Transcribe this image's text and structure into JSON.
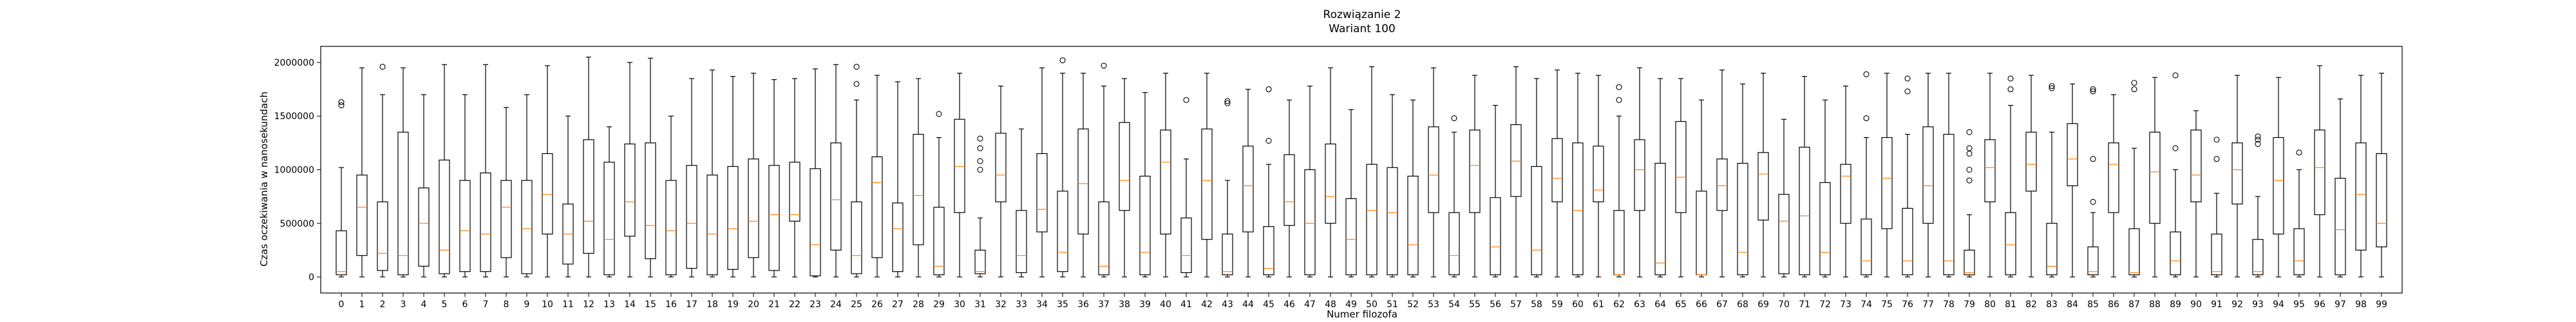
{
  "chart_data": {
    "type": "boxplot",
    "title": "Rozwiązanie 2",
    "subtitle": "Wariant 100",
    "xlabel": "Numer filozofa",
    "ylabel": "Czas oczekiwania w nanosekundach",
    "ylim": [
      -150000,
      2150000
    ],
    "yticks": [
      0,
      500000,
      1000000,
      1500000,
      2000000
    ],
    "ytick_labels": [
      "0",
      "500000",
      "1000000",
      "1500000",
      "2000000"
    ],
    "colors": {
      "box": "#000000",
      "median": "#ff7f0e",
      "frame": "#000000"
    },
    "categories": [
      "0",
      "1",
      "2",
      "3",
      "4",
      "5",
      "6",
      "7",
      "8",
      "9",
      "10",
      "11",
      "12",
      "13",
      "14",
      "15",
      "16",
      "17",
      "18",
      "19",
      "20",
      "21",
      "22",
      "23",
      "24",
      "25",
      "26",
      "27",
      "28",
      "29",
      "30",
      "31",
      "32",
      "33",
      "34",
      "35",
      "36",
      "37",
      "38",
      "39",
      "40",
      "41",
      "42",
      "43",
      "44",
      "45",
      "46",
      "47",
      "48",
      "49",
      "50",
      "51",
      "52",
      "53",
      "54",
      "55",
      "56",
      "57",
      "58",
      "59",
      "60",
      "61",
      "62",
      "63",
      "64",
      "65",
      "66",
      "67",
      "68",
      "69",
      "70",
      "71",
      "72",
      "73",
      "74",
      "75",
      "76",
      "77",
      "78",
      "79",
      "80",
      "81",
      "82",
      "83",
      "84",
      "85",
      "86",
      "87",
      "88",
      "89",
      "90",
      "91",
      "92",
      "93",
      "94",
      "95",
      "96",
      "97",
      "98",
      "99"
    ],
    "boxes": [
      {
        "whislo": 0,
        "q1": 20000,
        "med": 50000,
        "q3": 430000,
        "whishi": 1020000,
        "fliers": [
          1600000,
          1630000
        ]
      },
      {
        "whislo": 0,
        "q1": 200000,
        "med": 650000,
        "q3": 950000,
        "whishi": 1950000,
        "fliers": []
      },
      {
        "whislo": 0,
        "q1": 60000,
        "med": 220000,
        "q3": 700000,
        "whishi": 1700000,
        "fliers": [
          1960000
        ]
      },
      {
        "whislo": 0,
        "q1": 20000,
        "med": 200000,
        "q3": 1350000,
        "whishi": 1950000,
        "fliers": []
      },
      {
        "whislo": 0,
        "q1": 100000,
        "med": 500000,
        "q3": 830000,
        "whishi": 1700000,
        "fliers": []
      },
      {
        "whislo": 0,
        "q1": 30000,
        "med": 250000,
        "q3": 1090000,
        "whishi": 1980000,
        "fliers": []
      },
      {
        "whislo": 0,
        "q1": 50000,
        "med": 430000,
        "q3": 900000,
        "whishi": 1700000,
        "fliers": []
      },
      {
        "whislo": 0,
        "q1": 50000,
        "med": 400000,
        "q3": 970000,
        "whishi": 1980000,
        "fliers": []
      },
      {
        "whislo": 0,
        "q1": 180000,
        "med": 650000,
        "q3": 900000,
        "whishi": 1580000,
        "fliers": []
      },
      {
        "whislo": 0,
        "q1": 30000,
        "med": 450000,
        "q3": 900000,
        "whishi": 1700000,
        "fliers": []
      },
      {
        "whislo": 0,
        "q1": 400000,
        "med": 770000,
        "q3": 1150000,
        "whishi": 1970000,
        "fliers": []
      },
      {
        "whislo": 0,
        "q1": 120000,
        "med": 400000,
        "q3": 680000,
        "whishi": 1500000,
        "fliers": []
      },
      {
        "whislo": 0,
        "q1": 220000,
        "med": 520000,
        "q3": 1280000,
        "whishi": 2050000,
        "fliers": []
      },
      {
        "whislo": 0,
        "q1": 20000,
        "med": 350000,
        "q3": 1070000,
        "whishi": 1400000,
        "fliers": []
      },
      {
        "whislo": 0,
        "q1": 380000,
        "med": 700000,
        "q3": 1240000,
        "whishi": 2000000,
        "fliers": []
      },
      {
        "whislo": 0,
        "q1": 170000,
        "med": 480000,
        "q3": 1250000,
        "whishi": 2040000,
        "fliers": []
      },
      {
        "whislo": 0,
        "q1": 20000,
        "med": 430000,
        "q3": 900000,
        "whishi": 1500000,
        "fliers": []
      },
      {
        "whislo": 0,
        "q1": 80000,
        "med": 500000,
        "q3": 1040000,
        "whishi": 1850000,
        "fliers": []
      },
      {
        "whislo": 0,
        "q1": 20000,
        "med": 400000,
        "q3": 950000,
        "whishi": 1930000,
        "fliers": []
      },
      {
        "whislo": 0,
        "q1": 70000,
        "med": 450000,
        "q3": 1030000,
        "whishi": 1870000,
        "fliers": []
      },
      {
        "whislo": 0,
        "q1": 180000,
        "med": 520000,
        "q3": 1100000,
        "whishi": 1900000,
        "fliers": []
      },
      {
        "whislo": 0,
        "q1": 60000,
        "med": 580000,
        "q3": 1040000,
        "whishi": 1840000,
        "fliers": []
      },
      {
        "whislo": 0,
        "q1": 520000,
        "med": 580000,
        "q3": 1070000,
        "whishi": 1850000,
        "fliers": []
      },
      {
        "whislo": 0,
        "q1": 10000,
        "med": 300000,
        "q3": 1010000,
        "whishi": 1940000,
        "fliers": []
      },
      {
        "whislo": 0,
        "q1": 250000,
        "med": 720000,
        "q3": 1250000,
        "whishi": 1980000,
        "fliers": []
      },
      {
        "whislo": 0,
        "q1": 30000,
        "med": 200000,
        "q3": 700000,
        "whishi": 1650000,
        "fliers": [
          1800000,
          1960000
        ]
      },
      {
        "whislo": 0,
        "q1": 180000,
        "med": 880000,
        "q3": 1120000,
        "whishi": 1880000,
        "fliers": []
      },
      {
        "whislo": 0,
        "q1": 50000,
        "med": 450000,
        "q3": 690000,
        "whishi": 1820000,
        "fliers": []
      },
      {
        "whislo": 0,
        "q1": 300000,
        "med": 760000,
        "q3": 1330000,
        "whishi": 1850000,
        "fliers": []
      },
      {
        "whislo": 0,
        "q1": 20000,
        "med": 100000,
        "q3": 650000,
        "whishi": 1300000,
        "fliers": [
          1520000
        ]
      },
      {
        "whislo": 0,
        "q1": 600000,
        "med": 1030000,
        "q3": 1470000,
        "whishi": 1900000,
        "fliers": []
      },
      {
        "whislo": 0,
        "q1": 30000,
        "med": 50000,
        "q3": 250000,
        "whishi": 550000,
        "fliers": [
          1000000,
          1080000,
          1200000,
          1290000
        ]
      },
      {
        "whislo": 0,
        "q1": 700000,
        "med": 950000,
        "q3": 1340000,
        "whishi": 1780000,
        "fliers": []
      },
      {
        "whislo": 0,
        "q1": 40000,
        "med": 200000,
        "q3": 620000,
        "whishi": 1380000,
        "fliers": []
      },
      {
        "whislo": 0,
        "q1": 420000,
        "med": 630000,
        "q3": 1150000,
        "whishi": 1950000,
        "fliers": []
      },
      {
        "whislo": 0,
        "q1": 50000,
        "med": 230000,
        "q3": 800000,
        "whishi": 1900000,
        "fliers": [
          2020000
        ]
      },
      {
        "whislo": 0,
        "q1": 400000,
        "med": 870000,
        "q3": 1380000,
        "whishi": 1900000,
        "fliers": []
      },
      {
        "whislo": 0,
        "q1": 20000,
        "med": 100000,
        "q3": 700000,
        "whishi": 1780000,
        "fliers": [
          1970000
        ]
      },
      {
        "whislo": 0,
        "q1": 620000,
        "med": 900000,
        "q3": 1440000,
        "whishi": 1850000,
        "fliers": []
      },
      {
        "whislo": 0,
        "q1": 20000,
        "med": 230000,
        "q3": 940000,
        "whishi": 1720000,
        "fliers": []
      },
      {
        "whislo": 0,
        "q1": 400000,
        "med": 1070000,
        "q3": 1370000,
        "whishi": 1900000,
        "fliers": []
      },
      {
        "whislo": 0,
        "q1": 40000,
        "med": 200000,
        "q3": 550000,
        "whishi": 1100000,
        "fliers": [
          1650000
        ]
      },
      {
        "whislo": 0,
        "q1": 350000,
        "med": 900000,
        "q3": 1380000,
        "whishi": 1900000,
        "fliers": []
      },
      {
        "whislo": 0,
        "q1": 20000,
        "med": 50000,
        "q3": 400000,
        "whishi": 900000,
        "fliers": [
          1620000,
          1640000
        ]
      },
      {
        "whislo": 0,
        "q1": 420000,
        "med": 850000,
        "q3": 1220000,
        "whishi": 1750000,
        "fliers": []
      },
      {
        "whislo": 0,
        "q1": 20000,
        "med": 80000,
        "q3": 470000,
        "whishi": 1050000,
        "fliers": [
          1270000,
          1750000
        ]
      },
      {
        "whislo": 0,
        "q1": 480000,
        "med": 700000,
        "q3": 1140000,
        "whishi": 1650000,
        "fliers": []
      },
      {
        "whislo": 0,
        "q1": 20000,
        "med": 500000,
        "q3": 1000000,
        "whishi": 1780000,
        "fliers": []
      },
      {
        "whislo": 0,
        "q1": 500000,
        "med": 750000,
        "q3": 1240000,
        "whishi": 1950000,
        "fliers": []
      },
      {
        "whislo": 0,
        "q1": 20000,
        "med": 350000,
        "q3": 730000,
        "whishi": 1560000,
        "fliers": []
      },
      {
        "whislo": 0,
        "q1": 20000,
        "med": 620000,
        "q3": 1050000,
        "whishi": 1960000,
        "fliers": []
      },
      {
        "whislo": 0,
        "q1": 20000,
        "med": 600000,
        "q3": 1020000,
        "whishi": 1700000,
        "fliers": []
      },
      {
        "whislo": 0,
        "q1": 20000,
        "med": 300000,
        "q3": 940000,
        "whishi": 1650000,
        "fliers": []
      },
      {
        "whislo": 0,
        "q1": 600000,
        "med": 950000,
        "q3": 1400000,
        "whishi": 1950000,
        "fliers": []
      },
      {
        "whislo": 0,
        "q1": 20000,
        "med": 200000,
        "q3": 600000,
        "whishi": 1350000,
        "fliers": [
          1480000
        ]
      },
      {
        "whislo": 0,
        "q1": 600000,
        "med": 1040000,
        "q3": 1370000,
        "whishi": 1880000,
        "fliers": []
      },
      {
        "whislo": 0,
        "q1": 20000,
        "med": 280000,
        "q3": 740000,
        "whishi": 1600000,
        "fliers": []
      },
      {
        "whislo": 0,
        "q1": 750000,
        "med": 1080000,
        "q3": 1420000,
        "whishi": 1960000,
        "fliers": []
      },
      {
        "whislo": 0,
        "q1": 20000,
        "med": 250000,
        "q3": 1030000,
        "whishi": 1850000,
        "fliers": []
      },
      {
        "whislo": 0,
        "q1": 700000,
        "med": 920000,
        "q3": 1290000,
        "whishi": 1930000,
        "fliers": []
      },
      {
        "whislo": 0,
        "q1": 20000,
        "med": 620000,
        "q3": 1250000,
        "whishi": 1900000,
        "fliers": []
      },
      {
        "whislo": 0,
        "q1": 700000,
        "med": 810000,
        "q3": 1220000,
        "whishi": 1880000,
        "fliers": []
      },
      {
        "whislo": 0,
        "q1": 20000,
        "med": 20000,
        "q3": 620000,
        "whishi": 1500000,
        "fliers": [
          1650000,
          1770000
        ]
      },
      {
        "whislo": 0,
        "q1": 620000,
        "med": 1000000,
        "q3": 1280000,
        "whishi": 1950000,
        "fliers": []
      },
      {
        "whislo": 0,
        "q1": 20000,
        "med": 130000,
        "q3": 1060000,
        "whishi": 1850000,
        "fliers": []
      },
      {
        "whislo": 0,
        "q1": 600000,
        "med": 930000,
        "q3": 1450000,
        "whishi": 1850000,
        "fliers": []
      },
      {
        "whislo": 0,
        "q1": 20000,
        "med": 20000,
        "q3": 800000,
        "whishi": 1650000,
        "fliers": []
      },
      {
        "whislo": 0,
        "q1": 620000,
        "med": 850000,
        "q3": 1100000,
        "whishi": 1930000,
        "fliers": []
      },
      {
        "whislo": 0,
        "q1": 20000,
        "med": 230000,
        "q3": 1060000,
        "whishi": 1800000,
        "fliers": []
      },
      {
        "whislo": 0,
        "q1": 530000,
        "med": 960000,
        "q3": 1160000,
        "whishi": 1900000,
        "fliers": []
      },
      {
        "whislo": 0,
        "q1": 30000,
        "med": 520000,
        "q3": 770000,
        "whishi": 1470000,
        "fliers": []
      },
      {
        "whislo": 0,
        "q1": 20000,
        "med": 570000,
        "q3": 1210000,
        "whishi": 1870000,
        "fliers": []
      },
      {
        "whislo": 0,
        "q1": 20000,
        "med": 230000,
        "q3": 880000,
        "whishi": 1650000,
        "fliers": []
      },
      {
        "whislo": 0,
        "q1": 500000,
        "med": 940000,
        "q3": 1050000,
        "whishi": 1780000,
        "fliers": []
      },
      {
        "whislo": 0,
        "q1": 20000,
        "med": 150000,
        "q3": 540000,
        "whishi": 1300000,
        "fliers": [
          1480000,
          1890000
        ]
      },
      {
        "whislo": 0,
        "q1": 450000,
        "med": 920000,
        "q3": 1300000,
        "whishi": 1900000,
        "fliers": []
      },
      {
        "whislo": 0,
        "q1": 20000,
        "med": 150000,
        "q3": 640000,
        "whishi": 1330000,
        "fliers": [
          1730000,
          1850000
        ]
      },
      {
        "whislo": 0,
        "q1": 500000,
        "med": 850000,
        "q3": 1400000,
        "whishi": 1900000,
        "fliers": []
      },
      {
        "whislo": 0,
        "q1": 20000,
        "med": 150000,
        "q3": 1330000,
        "whishi": 1900000,
        "fliers": []
      },
      {
        "whislo": 0,
        "q1": 20000,
        "med": 40000,
        "q3": 250000,
        "whishi": 580000,
        "fliers": [
          900000,
          1000000,
          1150000,
          1200000,
          1350000
        ]
      },
      {
        "whislo": 0,
        "q1": 700000,
        "med": 1020000,
        "q3": 1280000,
        "whishi": 1900000,
        "fliers": []
      },
      {
        "whislo": 0,
        "q1": 20000,
        "med": 300000,
        "q3": 600000,
        "whishi": 1600000,
        "fliers": [
          1750000,
          1850000
        ]
      },
      {
        "whislo": 0,
        "q1": 800000,
        "med": 1050000,
        "q3": 1350000,
        "whishi": 1880000,
        "fliers": []
      },
      {
        "whislo": 0,
        "q1": 20000,
        "med": 100000,
        "q3": 500000,
        "whishi": 1350000,
        "fliers": [
          1760000,
          1780000
        ]
      },
      {
        "whislo": 0,
        "q1": 850000,
        "med": 1100000,
        "q3": 1430000,
        "whishi": 1800000,
        "fliers": []
      },
      {
        "whislo": 0,
        "q1": 20000,
        "med": 50000,
        "q3": 280000,
        "whishi": 600000,
        "fliers": [
          700000,
          1100000,
          1730000,
          1750000
        ]
      },
      {
        "whislo": 0,
        "q1": 600000,
        "med": 1050000,
        "q3": 1250000,
        "whishi": 1700000,
        "fliers": []
      },
      {
        "whislo": 0,
        "q1": 20000,
        "med": 40000,
        "q3": 450000,
        "whishi": 1200000,
        "fliers": [
          1750000,
          1810000
        ]
      },
      {
        "whislo": 0,
        "q1": 500000,
        "med": 980000,
        "q3": 1350000,
        "whishi": 1860000,
        "fliers": []
      },
      {
        "whislo": 0,
        "q1": 20000,
        "med": 150000,
        "q3": 420000,
        "whishi": 1000000,
        "fliers": [
          1200000,
          1880000
        ]
      },
      {
        "whislo": 0,
        "q1": 700000,
        "med": 950000,
        "q3": 1370000,
        "whishi": 1550000,
        "fliers": []
      },
      {
        "whislo": 0,
        "q1": 20000,
        "med": 50000,
        "q3": 400000,
        "whishi": 780000,
        "fliers": [
          1100000,
          1280000
        ]
      },
      {
        "whislo": 0,
        "q1": 680000,
        "med": 1000000,
        "q3": 1250000,
        "whishi": 1880000,
        "fliers": []
      },
      {
        "whislo": 0,
        "q1": 20000,
        "med": 50000,
        "q3": 350000,
        "whishi": 750000,
        "fliers": [
          1240000,
          1280000,
          1310000
        ]
      },
      {
        "whislo": 0,
        "q1": 400000,
        "med": 900000,
        "q3": 1300000,
        "whishi": 1860000,
        "fliers": []
      },
      {
        "whislo": 0,
        "q1": 20000,
        "med": 150000,
        "q3": 450000,
        "whishi": 1000000,
        "fliers": [
          1160000
        ]
      },
      {
        "whislo": 0,
        "q1": 580000,
        "med": 1020000,
        "q3": 1370000,
        "whishi": 1970000,
        "fliers": []
      },
      {
        "whislo": 0,
        "q1": 20000,
        "med": 440000,
        "q3": 920000,
        "whishi": 1660000,
        "fliers": []
      },
      {
        "whislo": 0,
        "q1": 250000,
        "med": 770000,
        "q3": 1250000,
        "whishi": 1880000,
        "fliers": []
      },
      {
        "whislo": 0,
        "q1": 280000,
        "med": 500000,
        "q3": 1150000,
        "whishi": 1900000,
        "fliers": []
      }
    ]
  }
}
